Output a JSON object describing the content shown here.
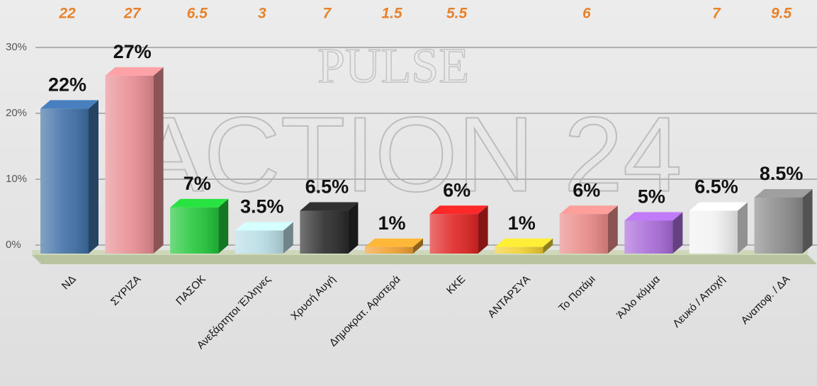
{
  "chart_data": {
    "type": "bar3d",
    "categories": [
      "ΝΔ",
      "ΣΥΡΙΖΑ",
      "ΠΑΣΟΚ",
      "Ανεξάρτητοι Έλληνες",
      "Χρυσή Αυγή",
      "Δημοκρατ. Αριστερά",
      "ΚΚΕ",
      "ΑΝΤΑΡΣΥΑ",
      "Το Ποτάμι",
      "Άλλο κόμμα",
      "Λευκό / Αποχή",
      "Αναποφ. / ΔΑ"
    ],
    "values": [
      22,
      27,
      7,
      3.5,
      6.5,
      1,
      6,
      1,
      6,
      5,
      6.5,
      8.5
    ],
    "value_labels": [
      "22%",
      "27%",
      "7%",
      "3.5%",
      "6.5%",
      "1%",
      "6%",
      "1%",
      "6%",
      "5%",
      "6.5%",
      "8.5%"
    ],
    "previous_values": [
      22,
      27,
      6.5,
      3,
      7,
      1.5,
      5.5,
      null,
      6,
      null,
      7,
      9.5
    ],
    "colors": [
      "#3f6fa6",
      "#e88d92",
      "#22c63a",
      "#b9dde6",
      "#2a2a2a",
      "#f0a030",
      "#e02424",
      "#f0d030",
      "#e88a88",
      "#a86ad8",
      "#f2f2f2",
      "#8a8a8a"
    ],
    "ylim": [
      0,
      30
    ],
    "yticks": [
      {
        "value": 0,
        "label": "0%"
      },
      {
        "value": 10,
        "label": "10%"
      },
      {
        "value": 20,
        "label": "20%"
      },
      {
        "value": 30,
        "label": "30%"
      }
    ],
    "grid": true,
    "watermark": [
      "PULSE",
      "ACTION 24"
    ]
  }
}
